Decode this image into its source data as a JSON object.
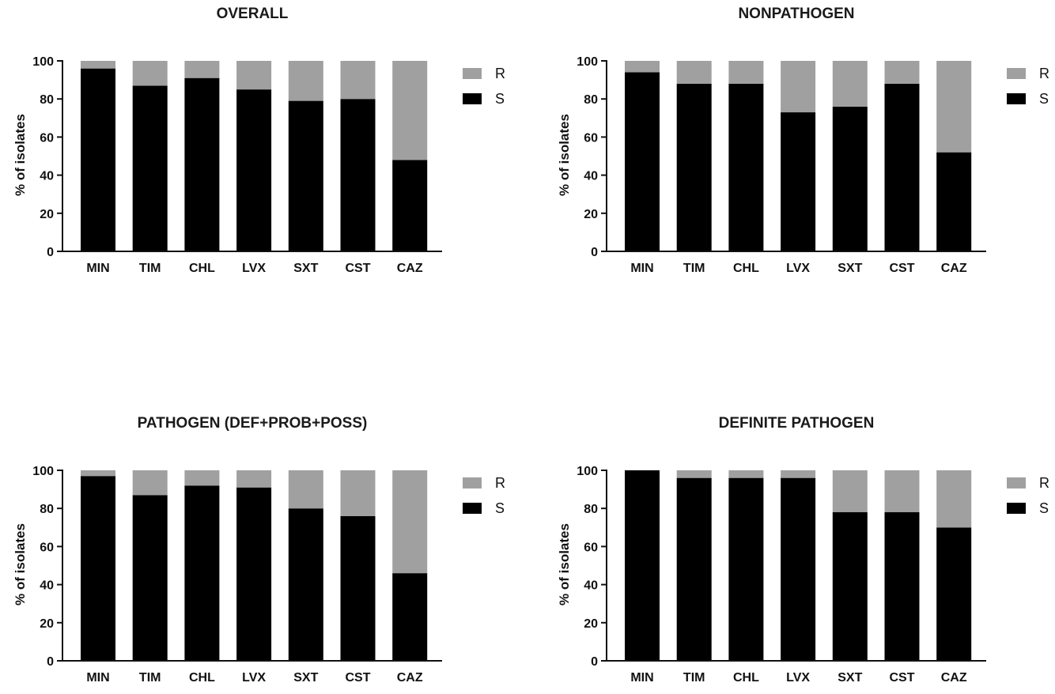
{
  "chart_data": [
    {
      "type": "bar",
      "stacked": true,
      "title": "OVERALL",
      "ylabel": "% of isolates",
      "xlabel": "",
      "ylim": [
        0,
        100
      ],
      "yticks": [
        "0",
        "20",
        "40",
        "60",
        "80",
        "100"
      ],
      "categories": [
        "MIN",
        "TIM",
        "CHL",
        "LVX",
        "SXT",
        "CST",
        "CAZ"
      ],
      "series": [
        {
          "name": "S",
          "color": "#000000",
          "values": [
            96,
            87,
            91,
            85,
            79,
            80,
            48
          ]
        },
        {
          "name": "R",
          "color": "#a0a0a0",
          "values": [
            4,
            13,
            9,
            15,
            21,
            20,
            52
          ]
        }
      ],
      "legend_position": "right-top"
    },
    {
      "type": "bar",
      "stacked": true,
      "title": "NONPATHOGEN",
      "ylabel": "% of isolates",
      "xlabel": "",
      "ylim": [
        0,
        100
      ],
      "yticks": [
        "0",
        "20",
        "40",
        "60",
        "80",
        "100"
      ],
      "categories": [
        "MIN",
        "TIM",
        "CHL",
        "LVX",
        "SXT",
        "CST",
        "CAZ"
      ],
      "series": [
        {
          "name": "S",
          "color": "#000000",
          "values": [
            94,
            88,
            88,
            73,
            76,
            88,
            52
          ]
        },
        {
          "name": "R",
          "color": "#a0a0a0",
          "values": [
            6,
            12,
            12,
            27,
            24,
            12,
            48
          ]
        }
      ],
      "legend_position": "right-top"
    },
    {
      "type": "bar",
      "stacked": true,
      "title": "PATHOGEN (DEF+PROB+POSS)",
      "ylabel": "% of isolates",
      "xlabel": "",
      "ylim": [
        0,
        100
      ],
      "yticks": [
        "0",
        "20",
        "40",
        "60",
        "80",
        "100"
      ],
      "categories": [
        "MIN",
        "TIM",
        "CHL",
        "LVX",
        "SXT",
        "CST",
        "CAZ"
      ],
      "series": [
        {
          "name": "S",
          "color": "#000000",
          "values": [
            97,
            87,
            92,
            91,
            80,
            76,
            46
          ]
        },
        {
          "name": "R",
          "color": "#a0a0a0",
          "values": [
            3,
            13,
            8,
            9,
            20,
            24,
            54
          ]
        }
      ],
      "legend_position": "right-top"
    },
    {
      "type": "bar",
      "stacked": true,
      "title": "DEFINITE PATHOGEN",
      "ylabel": "% of isolates",
      "xlabel": "",
      "ylim": [
        0,
        100
      ],
      "yticks": [
        "0",
        "20",
        "40",
        "60",
        "80",
        "100"
      ],
      "categories": [
        "MIN",
        "TIM",
        "CHL",
        "LVX",
        "SXT",
        "CST",
        "CAZ"
      ],
      "series": [
        {
          "name": "S",
          "color": "#000000",
          "values": [
            100,
            96,
            96,
            96,
            78,
            78,
            70
          ]
        },
        {
          "name": "R",
          "color": "#a0a0a0",
          "values": [
            0,
            4,
            4,
            4,
            22,
            22,
            30
          ]
        }
      ],
      "legend_position": "right-top"
    }
  ]
}
